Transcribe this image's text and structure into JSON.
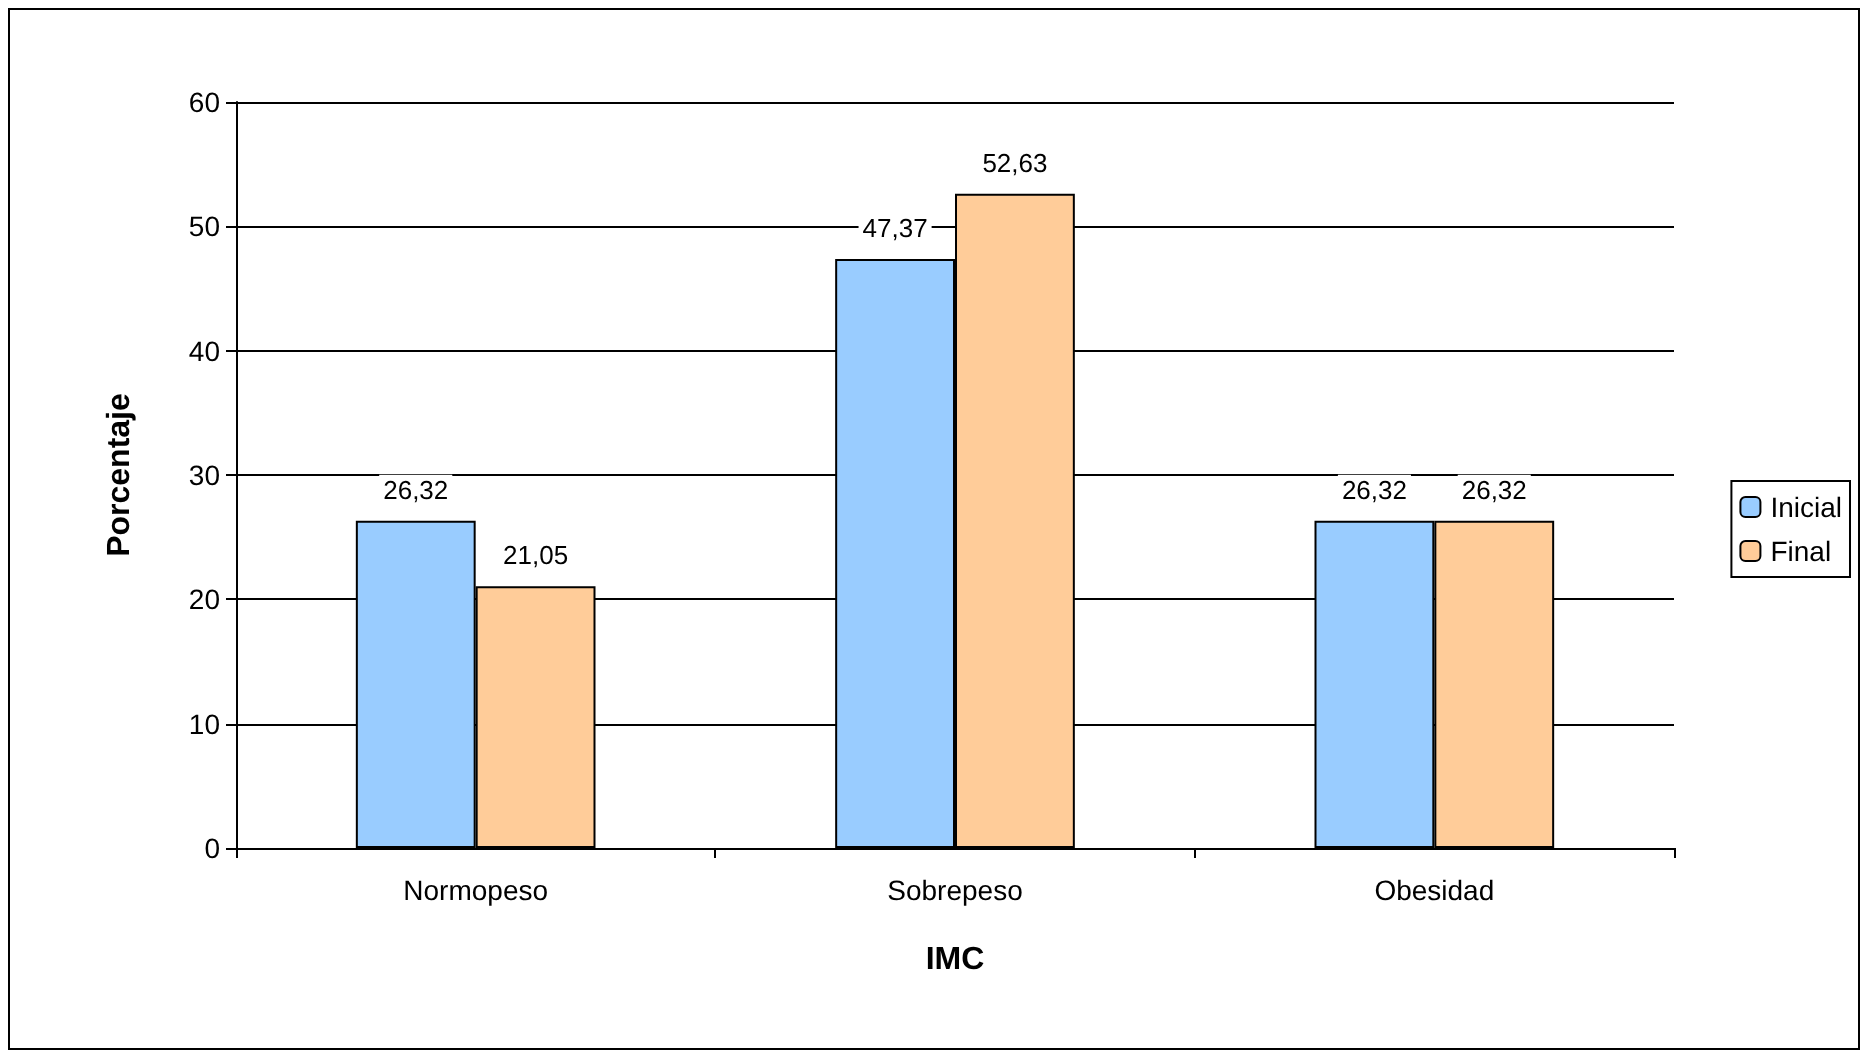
{
  "chart_data": {
    "type": "bar",
    "xlabel": "IMC",
    "ylabel": "Porcentaje",
    "categories": [
      "Normopeso",
      "Sobrepeso",
      "Obesidad"
    ],
    "series": [
      {
        "name": "Inicial",
        "color": "#99ccff",
        "values": [
          26.32,
          47.37,
          26.32
        ],
        "value_labels": [
          "26,32",
          "47,37",
          "26,32"
        ]
      },
      {
        "name": "Final",
        "color": "#ffcc99",
        "values": [
          21.05,
          52.63,
          26.32
        ],
        "value_labels": [
          "21,05",
          "52,63",
          "26,32"
        ]
      }
    ],
    "ylim": [
      0,
      60
    ],
    "yticks": [
      0,
      10,
      20,
      30,
      40,
      50,
      60
    ],
    "grid": "y",
    "legend": "right"
  }
}
